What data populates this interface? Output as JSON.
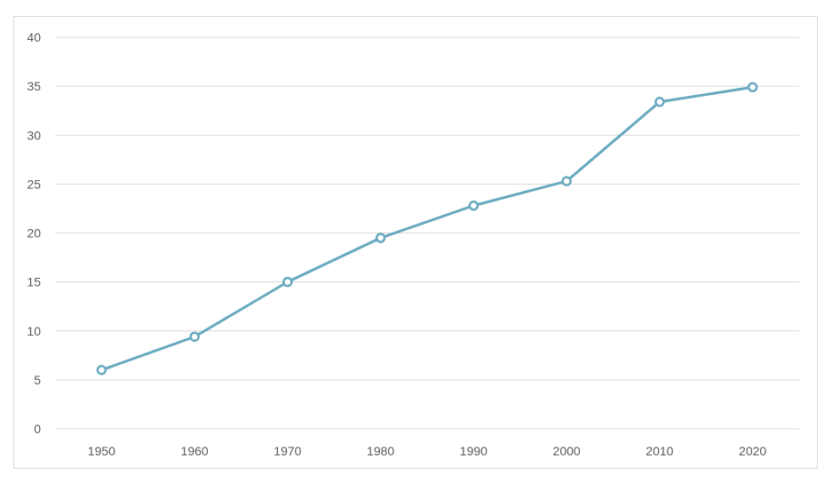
{
  "colors": {
    "series": "#67a9bf",
    "grid": "#d9d9d9",
    "text": "#595959"
  },
  "chart_data": {
    "type": "line",
    "title": "",
    "xlabel": "",
    "ylabel": "",
    "categories": [
      "1950",
      "1960",
      "1970",
      "1980",
      "1990",
      "2000",
      "2010",
      "2020"
    ],
    "series": [
      {
        "values": [
          6.0,
          9.4,
          15.0,
          19.5,
          22.8,
          25.3,
          33.4,
          34.9
        ]
      }
    ],
    "y_ticks": [
      "0",
      "5",
      "10",
      "15",
      "20",
      "25",
      "30",
      "35",
      "40"
    ],
    "ylim": [
      0,
      40
    ],
    "grid": true,
    "legend": "none",
    "markers": "hollow-circle"
  }
}
